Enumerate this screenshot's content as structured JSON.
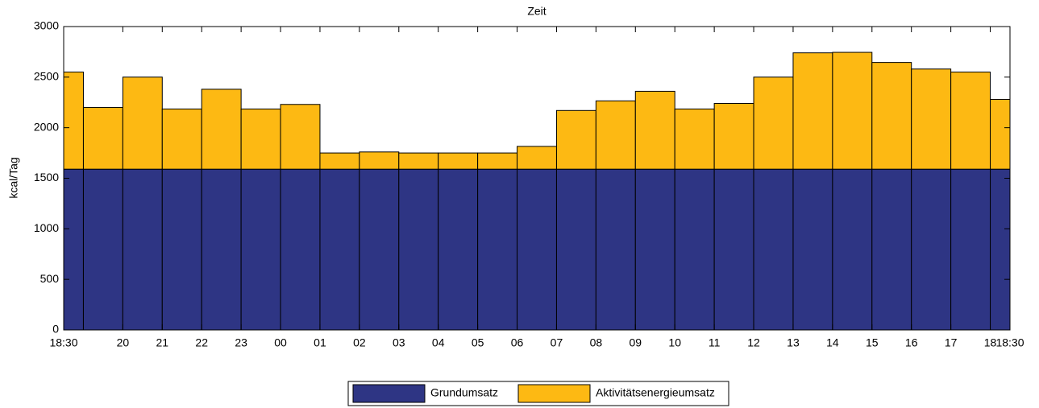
{
  "chart_data": {
    "type": "stacked_histogram",
    "title": "Zeit",
    "y_label": "kcal/Tag",
    "bins": [
      18.5,
      19,
      20,
      21,
      22,
      23,
      24,
      25,
      26,
      27,
      28,
      29,
      30,
      31,
      32,
      33,
      34,
      35,
      36,
      37,
      38,
      39,
      40,
      41,
      42,
      42.5
    ],
    "series": [
      {
        "name": "Grundumsatz",
        "color": "#2e3584",
        "values": [
          1590,
          1590,
          1590,
          1590,
          1590,
          1590,
          1590,
          1590,
          1590,
          1590,
          1590,
          1590,
          1590,
          1590,
          1590,
          1590,
          1590,
          1590,
          1590,
          1590,
          1590,
          1590,
          1590,
          1590,
          1590
        ]
      },
      {
        "name": "Aktivitätsenergieumsatz",
        "color": "#fdb913",
        "values": [
          960,
          610,
          910,
          595,
          790,
          595,
          640,
          160,
          170,
          160,
          160,
          160,
          225,
          580,
          675,
          770,
          595,
          650,
          910,
          1150,
          1155,
          1055,
          990,
          960,
          690
        ]
      }
    ],
    "xlim": [
      18.5,
      42.5
    ],
    "xticks": [
      {
        "value": 18.5,
        "label": "18:30"
      },
      20,
      21,
      22,
      23,
      {
        "value": 24,
        "label": "00"
      },
      {
        "value": 25,
        "label": "01"
      },
      {
        "value": 26,
        "label": "02"
      },
      {
        "value": 27,
        "label": "03"
      },
      {
        "value": 28,
        "label": "04"
      },
      {
        "value": 29,
        "label": "05"
      },
      {
        "value": 30,
        "label": "06"
      },
      {
        "value": 31,
        "label": "07"
      },
      {
        "value": 32,
        "label": "08"
      },
      {
        "value": 33,
        "label": "09"
      },
      {
        "value": 34,
        "label": "10"
      },
      {
        "value": 35,
        "label": "11"
      },
      {
        "value": 36,
        "label": "12"
      },
      {
        "value": 37,
        "label": "13"
      },
      {
        "value": 38,
        "label": "14"
      },
      {
        "value": 39,
        "label": "15"
      },
      {
        "value": 40,
        "label": "16"
      },
      {
        "value": 41,
        "label": "17"
      },
      {
        "value": 42,
        "label": "18"
      },
      {
        "value": 42.5,
        "label": "18:30"
      }
    ],
    "ylim": [
      0,
      3000
    ],
    "yticks": [
      0,
      500,
      1000,
      1500,
      2000,
      2500,
      3000
    ],
    "legend": "bottom"
  }
}
